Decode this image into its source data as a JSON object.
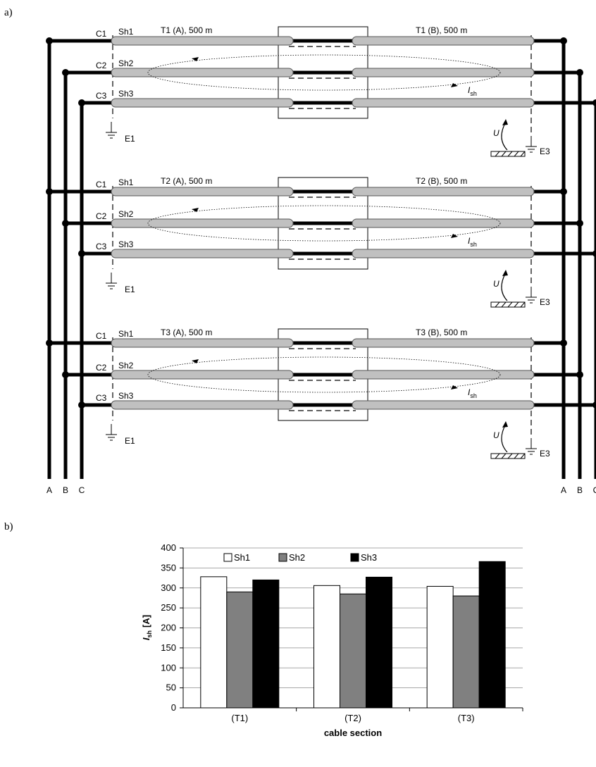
{
  "panel_labels": {
    "a": "a)",
    "b": "b)"
  },
  "diagram": {
    "sections": [
      {
        "left_label": "T1 (A), 500 m",
        "right_label": "T1 (B), 500 m"
      },
      {
        "left_label": "T2 (A), 500 m",
        "right_label": "T2 (B), 500 m"
      },
      {
        "left_label": "T3 (A), 500 m",
        "right_label": "T3 (B), 500 m"
      }
    ],
    "cable_labels": [
      "C1",
      "C2",
      "C3"
    ],
    "sheath_labels": [
      "Sh1",
      "Sh2",
      "Sh3"
    ],
    "earth_left": "E1",
    "earth_right": "E3",
    "voltage_label": "U",
    "current_label": "I",
    "current_subscript": "sh",
    "bus_labels": [
      "A",
      "B",
      "C"
    ]
  },
  "chart_data": {
    "type": "bar",
    "categories": [
      "(T1)",
      "(T2)",
      "(T3)"
    ],
    "series": [
      {
        "name": "Sh1",
        "values": [
          328,
          306,
          304
        ],
        "color": "#ffffff"
      },
      {
        "name": "Sh2",
        "values": [
          290,
          285,
          280
        ],
        "color": "#808080"
      },
      {
        "name": "Sh3",
        "values": [
          320,
          327,
          366
        ],
        "color": "#000000"
      }
    ],
    "ylabel_main": "I",
    "ylabel_sub": "sh",
    "ylabel_unit": "[A]",
    "xlabel": "cable section",
    "ylim": [
      0,
      400
    ],
    "yticks": [
      0,
      50,
      100,
      150,
      200,
      250,
      300,
      350,
      400
    ],
    "grid": true,
    "legend_position": "top"
  }
}
